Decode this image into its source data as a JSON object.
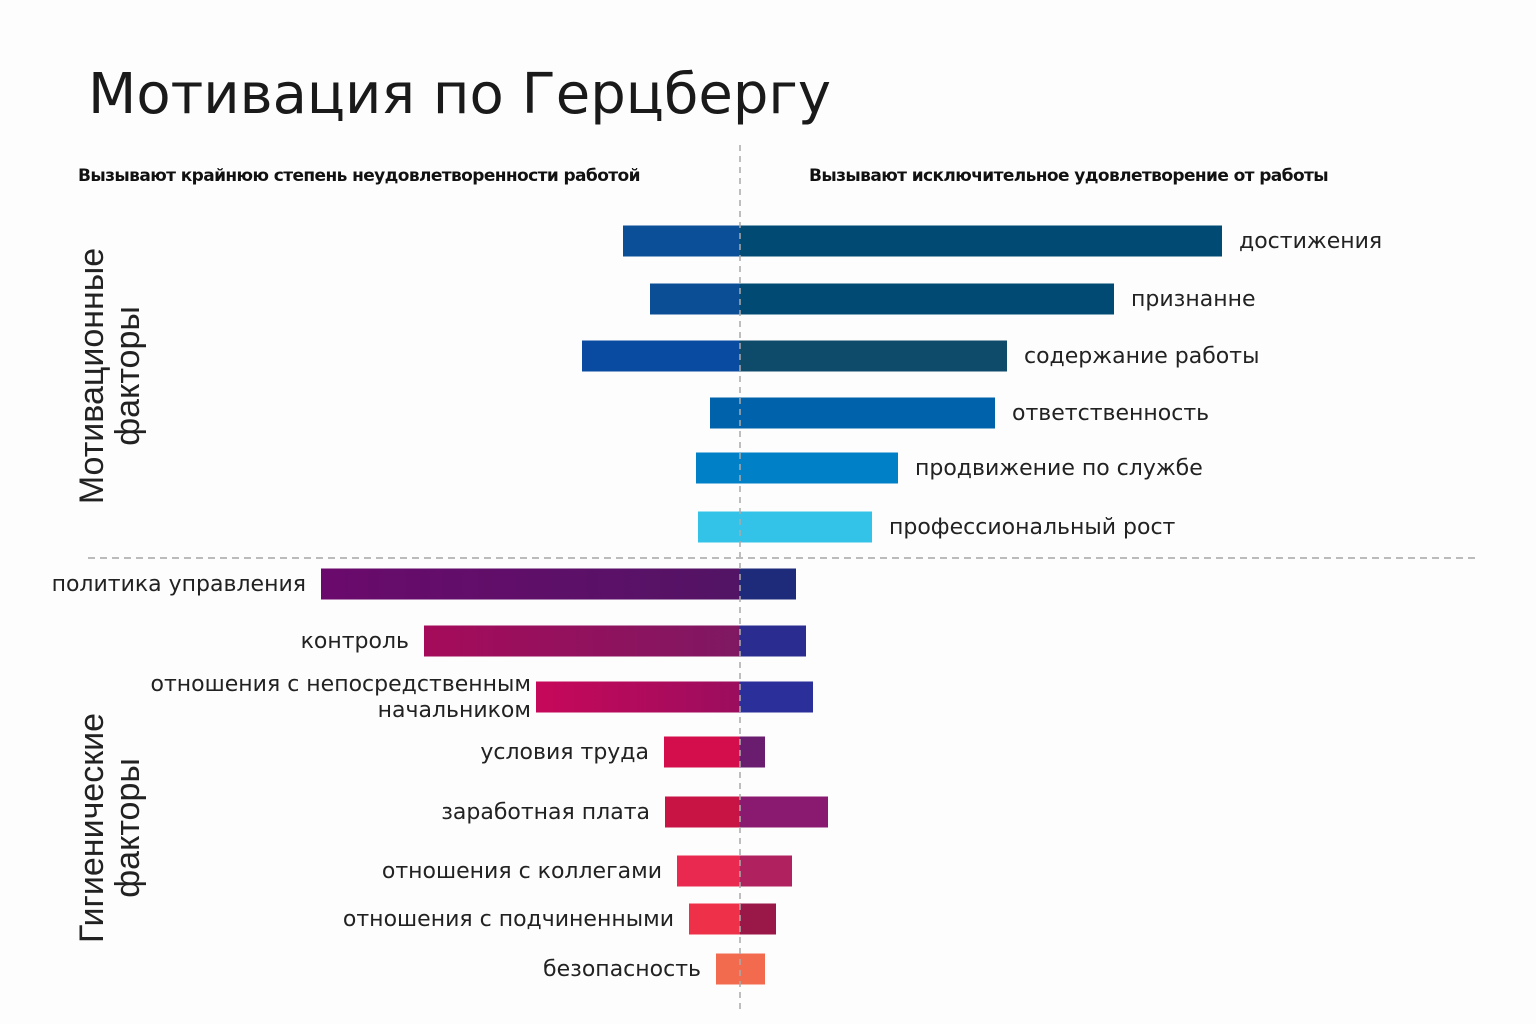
{
  "chart_data": {
    "type": "bar",
    "orientation": "horizontal-diverging",
    "title": "Мотивация по Герцбергу",
    "left_header": "Вызывают крайнюю степень неудовлетворенности работой",
    "right_header": "Вызывают исключительное удовлетворение от работы",
    "axis_labels_shown": false,
    "grid": false,
    "groups": [
      {
        "name": "Мотивационные факторы",
        "categories": [
          {
            "label": "достижения",
            "dissatisfaction": 11.7,
            "satisfaction": 48.2,
            "left_color": "#0a4f97",
            "right_color": "#004a74"
          },
          {
            "label": "признанне",
            "dissatisfaction": 9.0,
            "satisfaction": 37.4,
            "left_color": "#0b4e96",
            "right_color": "#004a74"
          },
          {
            "label": "содержание работы",
            "dissatisfaction": 15.8,
            "satisfaction": 26.7,
            "left_color": "#084ba0",
            "right_color": "#0e4a6a"
          },
          {
            "label": "ответственность",
            "dissatisfaction": 3.0,
            "satisfaction": 25.5,
            "left_color": "#0062ab",
            "right_color": "#0062ab"
          },
          {
            "label": "продвижение по службе",
            "dissatisfaction": 4.4,
            "satisfaction": 15.8,
            "left_color": "#0080c6",
            "right_color": "#0080c6"
          },
          {
            "label": "профессиональный рост",
            "dissatisfaction": 4.2,
            "satisfaction": 13.2,
            "left_color": "#33c3e8",
            "right_color": "#33c3e8"
          }
        ]
      },
      {
        "name": "Гигиенические факторы",
        "categories": [
          {
            "label": "политика управления",
            "dissatisfaction": 41.9,
            "satisfaction": 5.6,
            "left_color": "#6a0a6c",
            "left_color_end": "#531465",
            "right_color": "#1e2a7a"
          },
          {
            "label": "контроль",
            "dissatisfaction": 31.6,
            "satisfaction": 6.6,
            "left_color": "#a50b5a",
            "left_color_end": "#7f1862",
            "right_color": "#2a2d8f"
          },
          {
            "label": "отношения с непосредственным начальником",
            "label_lines": [
              "отношения с непосредственным",
              "начальником"
            ],
            "dissatisfaction": 20.4,
            "satisfaction": 7.3,
            "left_color": "#c7085a",
            "left_color_end": "#9b0d5e",
            "right_color": "#2b2f99"
          },
          {
            "label": "условия труда",
            "dissatisfaction": 7.6,
            "satisfaction": 2.5,
            "left_color": "#d40e4c",
            "right_color": "#6a1d6e"
          },
          {
            "label": "заработная плата",
            "dissatisfaction": 7.5,
            "satisfaction": 8.8,
            "left_color": "#c81445",
            "right_color": "#8a1a70"
          },
          {
            "label": "отношения с коллегами",
            "dissatisfaction": 6.3,
            "satisfaction": 5.2,
            "left_color": "#e9294f",
            "right_color": "#b0225f"
          },
          {
            "label": "отношения с подчиненными",
            "dissatisfaction": 5.1,
            "satisfaction": 3.6,
            "left_color": "#ee3148",
            "right_color": "#9a1848"
          },
          {
            "label": "безопасность",
            "dissatisfaction": 2.4,
            "satisfaction": 2.5,
            "left_color": "#f36b4f",
            "right_color": "#f36b4f"
          }
        ]
      }
    ],
    "group_label_lines": {
      "motivators": [
        "Мотивационные",
        "факторы"
      ],
      "hygiene": [
        "Гигиенические",
        "факторы"
      ]
    }
  }
}
